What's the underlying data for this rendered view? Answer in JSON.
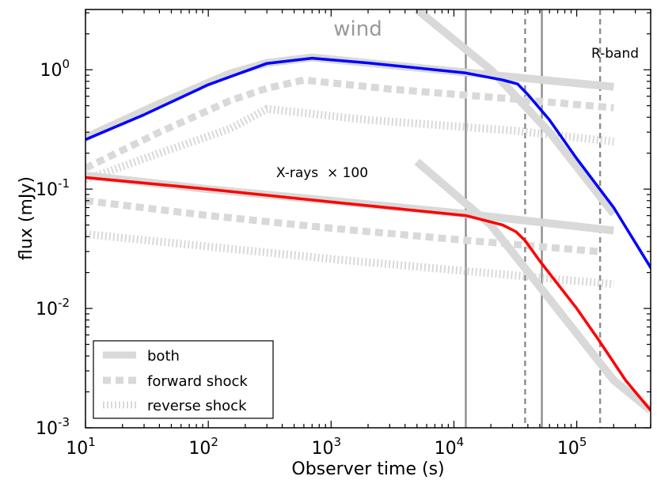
{
  "chart_data": {
    "type": "line",
    "xlabel": "Observer time (s)",
    "ylabel": "flux (mJy)",
    "xscale": "log",
    "yscale": "log",
    "xlim": [
      10,
      400000
    ],
    "ylim": [
      0.001,
      3.2
    ],
    "x_ticks": [
      {
        "base": "10",
        "exp": "1",
        "value": 10
      },
      {
        "base": "10",
        "exp": "2",
        "value": 100
      },
      {
        "base": "10",
        "exp": "3",
        "value": 1000
      },
      {
        "base": "10",
        "exp": "4",
        "value": 10000
      },
      {
        "base": "10",
        "exp": "5",
        "value": 100000
      }
    ],
    "y_ticks": [
      {
        "base": "10",
        "exp": "-3",
        "value": 0.001
      },
      {
        "base": "10",
        "exp": "-2",
        "value": 0.01
      },
      {
        "base": "10",
        "exp": "-1",
        "value": 0.1
      },
      {
        "base": "10",
        "exp": "0",
        "value": 1
      }
    ],
    "annotations": {
      "wind": "wind",
      "rband": "R-band",
      "xrays": "X-rays  × 100"
    },
    "legend": {
      "position": "lower-left",
      "entries": [
        {
          "label": "both",
          "style": "thick-solid",
          "color": "#d9d9d9"
        },
        {
          "label": "forward shock",
          "style": "dashed",
          "color": "#d9d9d9"
        },
        {
          "label": "reverse shock",
          "style": "dotted",
          "color": "#d9d9d9"
        }
      ]
    },
    "vlines": [
      {
        "x": 12500,
        "style": "solid",
        "color": "#8c8c8c"
      },
      {
        "x": 38000,
        "style": "dashed",
        "color": "#8c8c8c"
      },
      {
        "x": 52000,
        "style": "solid",
        "color": "#8c8c8c"
      },
      {
        "x": 155000,
        "style": "dashed",
        "color": "#8c8c8c"
      }
    ],
    "series": [
      {
        "name": "R-band both",
        "style": "thick-solid",
        "color": "#d9d9d9",
        "x": [
          10,
          40,
          150,
          300,
          700,
          2000,
          12500,
          200000
        ],
        "y": [
          0.27,
          0.52,
          0.93,
          1.14,
          1.27,
          1.14,
          0.95,
          0.72
        ]
      },
      {
        "name": "R-band steep asymptote",
        "style": "thick-solid",
        "color": "#d9d9d9",
        "x": [
          5000,
          20000,
          60000,
          200000
        ],
        "y": [
          3.2,
          1.0,
          0.3,
          0.062
        ]
      },
      {
        "name": "R-band forward shock",
        "style": "dashed",
        "color": "#d9d9d9",
        "x": [
          10,
          40,
          150,
          300,
          600,
          3000,
          30000,
          200000
        ],
        "y": [
          0.15,
          0.3,
          0.55,
          0.7,
          0.82,
          0.69,
          0.57,
          0.48
        ]
      },
      {
        "name": "R-band reverse shock",
        "style": "dotted",
        "color": "#d9d9d9",
        "x": [
          10,
          40,
          150,
          300,
          2000,
          30000,
          200000
        ],
        "y": [
          0.12,
          0.2,
          0.32,
          0.47,
          0.38,
          0.31,
          0.25
        ]
      },
      {
        "name": "R-band light curve",
        "style": "solid",
        "color": "#0000ff",
        "x": [
          10,
          30,
          100,
          300,
          700,
          2000,
          12500,
          25000,
          33000,
          40000,
          60000,
          100000,
          200000,
          400000
        ],
        "y": [
          0.26,
          0.42,
          0.75,
          1.13,
          1.25,
          1.14,
          0.94,
          0.82,
          0.76,
          0.62,
          0.38,
          0.18,
          0.07,
          0.022
        ]
      },
      {
        "name": "X-ray both",
        "style": "thick-solid",
        "color": "#d9d9d9",
        "x": [
          10,
          100,
          1000,
          12500,
          200000
        ],
        "y": [
          0.13,
          0.1,
          0.08,
          0.062,
          0.045
        ]
      },
      {
        "name": "X-ray steep asymptote",
        "style": "thick-solid",
        "color": "#d9d9d9",
        "x": [
          5000,
          20000,
          60000,
          200000,
          400000
        ],
        "y": [
          0.17,
          0.05,
          0.012,
          0.0025,
          0.0014
        ]
      },
      {
        "name": "X-ray forward shock",
        "style": "dashed",
        "color": "#d9d9d9",
        "x": [
          10,
          100,
          1000,
          10000,
          150000
        ],
        "y": [
          0.08,
          0.06,
          0.047,
          0.038,
          0.03
        ]
      },
      {
        "name": "X-ray reverse shock",
        "style": "dotted",
        "color": "#d9d9d9",
        "x": [
          10,
          100,
          1000,
          10000,
          200000
        ],
        "y": [
          0.042,
          0.033,
          0.026,
          0.021,
          0.016
        ]
      },
      {
        "name": "X-ray light curve",
        "style": "solid",
        "color": "#ff0000",
        "x": [
          10,
          100,
          1000,
          12500,
          25000,
          32000,
          38000,
          50000,
          100000,
          150000,
          250000,
          400000
        ],
        "y": [
          0.125,
          0.1,
          0.078,
          0.06,
          0.05,
          0.044,
          0.037,
          0.025,
          0.01,
          0.0055,
          0.0025,
          0.0014
        ]
      }
    ]
  }
}
